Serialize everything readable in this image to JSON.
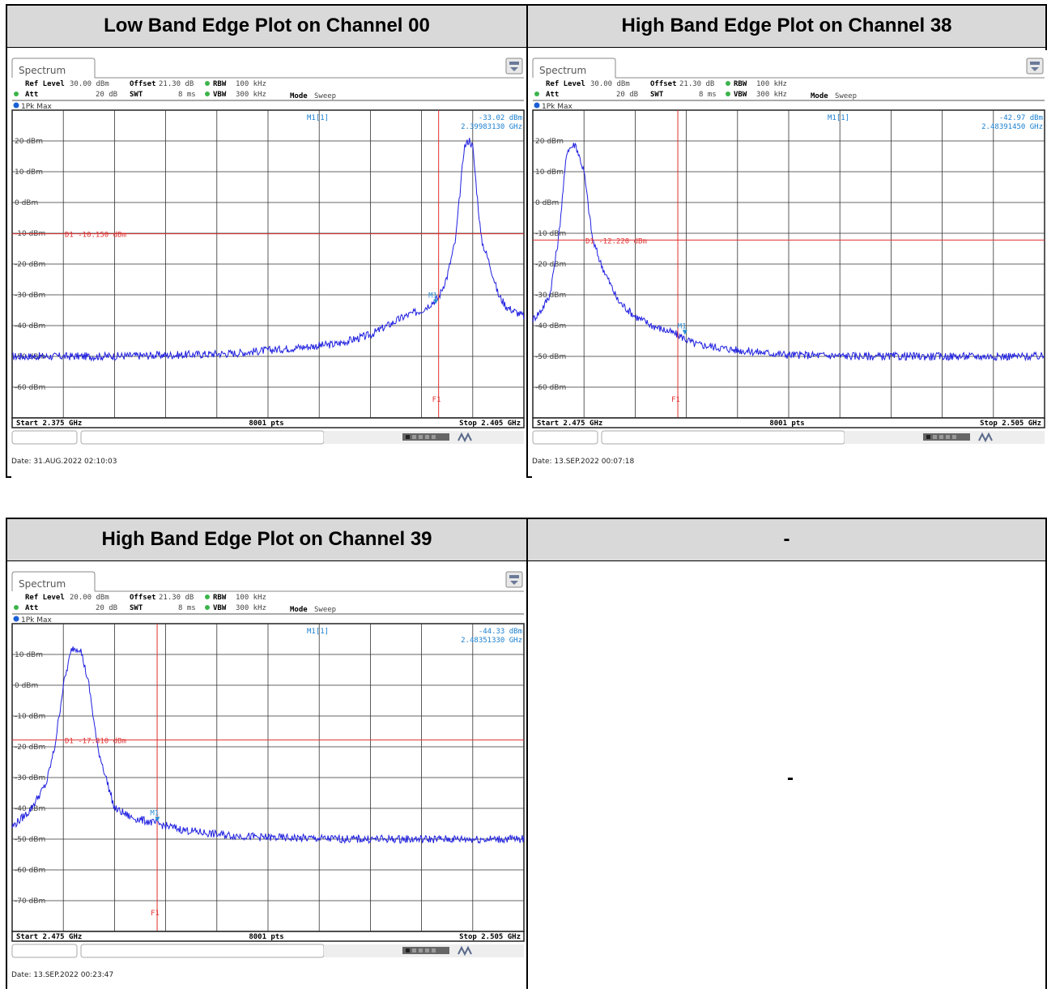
{
  "table1": {
    "headers": [
      "Low Band Edge Plot on Channel 00",
      "High Band Edge Plot on Channel 38"
    ]
  },
  "table2": {
    "headers": [
      "High Band Edge Plot on Channel 39",
      "-"
    ],
    "empty_cell": "-"
  },
  "plots": [
    {
      "tab": "Spectrum",
      "ref_level_label": "Ref Level",
      "ref_level": "30.00 dBm",
      "att_label": "Att",
      "att": "20 dB",
      "offset_label": "Offset",
      "offset": "21.30 dB",
      "swt_label": "SWT",
      "swt": "8 ms",
      "rbw_label": "RBW",
      "rbw": "100 kHz",
      "vbw_label": "VBW",
      "vbw": "300 kHz",
      "mode_label": "Mode",
      "mode": "Sweep",
      "trace_label": "1Pk Max",
      "marker_label": "M1[1]",
      "marker_value": "-33.02 dBm",
      "marker_freq": "2.39983130 GHz",
      "marker_tag": "M1",
      "display_line_label": "D1  -10.150 dBm",
      "freq_line_label": "F1",
      "start": "Start 2.375 GHz",
      "points": "8001 pts",
      "stop": "Stop 2.405 GHz",
      "date": "Date: 31.AUG.2022  02:10:03",
      "y_tick_labels": [
        "20 dBm",
        "10 dBm",
        "0 dBm",
        "-10 dBm",
        "-20 dBm",
        "-30 dBm",
        "-40 dBm",
        "-50 dBm",
        "-60 dBm"
      ]
    },
    {
      "tab": "Spectrum",
      "ref_level_label": "Ref Level",
      "ref_level": "30.00 dBm",
      "att_label": "Att",
      "att": "20 dB",
      "offset_label": "Offset",
      "offset": "21.30 dB",
      "swt_label": "SWT",
      "swt": "8 ms",
      "rbw_label": "RBW",
      "rbw": "100 kHz",
      "vbw_label": "VBW",
      "vbw": "300 kHz",
      "mode_label": "Mode",
      "mode": "Sweep",
      "trace_label": "1Pk Max",
      "marker_label": "M1[1]",
      "marker_value": "-42.97 dBm",
      "marker_freq": "2.48391450 GHz",
      "marker_tag": "M1",
      "display_line_label": "D1  -12.220 dBm",
      "freq_line_label": "F1",
      "start": "Start 2.475 GHz",
      "points": "8001 pts",
      "stop": "Stop 2.505 GHz",
      "date": "Date: 13.SEP.2022  00:07:18",
      "y_tick_labels": [
        "20 dBm",
        "10 dBm",
        "0 dBm",
        "-10 dBm",
        "-20 dBm",
        "-30 dBm",
        "-40 dBm",
        "-50 dBm",
        "-60 dBm"
      ]
    },
    {
      "tab": "Spectrum",
      "ref_level_label": "Ref Level",
      "ref_level": "20.00 dBm",
      "att_label": "Att",
      "att": "20 dB",
      "offset_label": "Offset",
      "offset": "21.30 dB",
      "swt_label": "SWT",
      "swt": "8 ms",
      "rbw_label": "RBW",
      "rbw": "100 kHz",
      "vbw_label": "VBW",
      "vbw": "300 kHz",
      "mode_label": "Mode",
      "mode": "Sweep",
      "trace_label": "1Pk Max",
      "marker_label": "M1[1]",
      "marker_value": "-44.33 dBm",
      "marker_freq": "2.48351330 GHz",
      "marker_tag": "M1",
      "display_line_label": "D1  -17.810 dBm",
      "freq_line_label": "F1",
      "start": "Start 2.475 GHz",
      "points": "8001 pts",
      "stop": "Stop 2.505 GHz",
      "date": "Date: 13.SEP.2022  00:23:47",
      "y_tick_labels": [
        "10 dBm",
        "0 dBm",
        "-10 dBm",
        "-20 dBm",
        "-30 dBm",
        "-40 dBm",
        "-50 dBm",
        "-60 dBm",
        "-70 dBm"
      ]
    }
  ],
  "chart_data": [
    {
      "type": "line",
      "x_unit": "GHz",
      "xlim": [
        2.375,
        2.405
      ],
      "ylim": [
        -70,
        30
      ],
      "y_unit": "dBm",
      "grid": true,
      "display_line": -10.15,
      "f1_line": 2.4,
      "marker": {
        "x": 2.3998313,
        "y": -33.02
      },
      "x": [
        2.375,
        2.38,
        2.385,
        2.388,
        2.39,
        2.392,
        2.394,
        2.396,
        2.397,
        2.398,
        2.399,
        2.3995,
        2.4,
        2.4005,
        2.401,
        2.4015,
        2.4018,
        2.402,
        2.4025,
        2.403,
        2.4035,
        2.404,
        2.405
      ],
      "y": [
        -50,
        -50,
        -49.5,
        -49,
        -48,
        -47,
        -46,
        -43,
        -40,
        -37,
        -35,
        -33,
        -31,
        -24,
        -12,
        18,
        20.5,
        18,
        -12,
        -20,
        -30,
        -34,
        -37
      ]
    },
    {
      "type": "line",
      "x_unit": "GHz",
      "xlim": [
        2.475,
        2.505
      ],
      "ylim": [
        -70,
        30
      ],
      "y_unit": "dBm",
      "grid": true,
      "display_line": -12.22,
      "f1_line": 2.4835,
      "marker": {
        "x": 2.4839145,
        "y": -42.97
      },
      "x": [
        2.475,
        2.4755,
        2.476,
        2.4765,
        2.477,
        2.4775,
        2.478,
        2.4785,
        2.479,
        2.48,
        2.481,
        2.482,
        2.4835,
        2.4845,
        2.487,
        2.49,
        2.495,
        2.5,
        2.505
      ],
      "y": [
        -38,
        -35,
        -30,
        -12,
        17,
        19,
        10,
        -12,
        -20,
        -32,
        -37,
        -40,
        -43,
        -46,
        -48,
        -49.5,
        -50,
        -50,
        -50
      ]
    },
    {
      "type": "line",
      "x_unit": "GHz",
      "xlim": [
        2.475,
        2.505
      ],
      "ylim": [
        -80,
        20
      ],
      "y_unit": "dBm",
      "grid": true,
      "display_line": -17.81,
      "f1_line": 2.4835,
      "marker": {
        "x": 2.4835133,
        "y": -44.33
      },
      "x": [
        2.475,
        2.476,
        2.477,
        2.4775,
        2.478,
        2.4785,
        2.479,
        2.4795,
        2.48,
        2.4805,
        2.481,
        2.482,
        2.4835,
        2.485,
        2.487,
        2.49,
        2.495,
        2.5,
        2.505
      ],
      "y": [
        -46,
        -41,
        -32,
        -20,
        0,
        12,
        12,
        0,
        -20,
        -30,
        -40,
        -43,
        -45,
        -47,
        -48.5,
        -49.5,
        -50,
        -50,
        -50
      ]
    }
  ]
}
